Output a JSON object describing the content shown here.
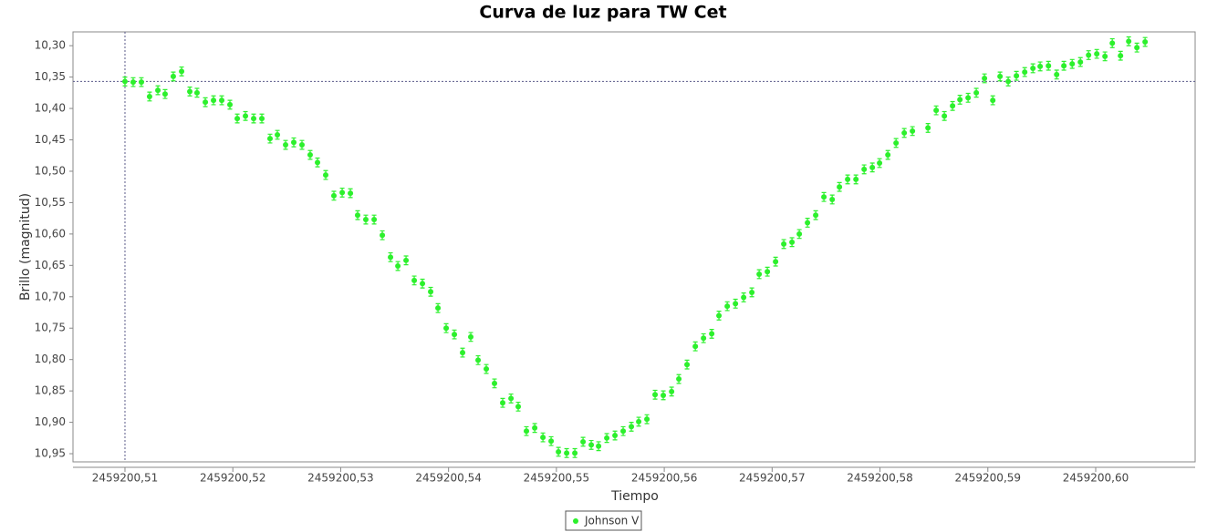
{
  "chart_data": {
    "type": "scatter",
    "title": "Curva de luz para TW Cet",
    "x_label": "Tiempo",
    "y_label": "Brillo (magnitud)",
    "xlim": [
      2459200.50518,
      2459200.60922
    ],
    "ylim": [
      10.278,
      10.963
    ],
    "y_inverted": true,
    "grid": false,
    "crosshair": {
      "x": 2459200.51,
      "y": 10.357
    },
    "legend": "bottom",
    "xticks": [
      {
        "value": 2459200.51,
        "label": "2459200,51"
      },
      {
        "value": 2459200.52,
        "label": "2459200,52"
      },
      {
        "value": 2459200.53,
        "label": "2459200,53"
      },
      {
        "value": 2459200.54,
        "label": "2459200,54"
      },
      {
        "value": 2459200.55,
        "label": "2459200,55"
      },
      {
        "value": 2459200.56,
        "label": "2459200,56"
      },
      {
        "value": 2459200.57,
        "label": "2459200,57"
      },
      {
        "value": 2459200.58,
        "label": "2459200,58"
      },
      {
        "value": 2459200.59,
        "label": "2459200,59"
      },
      {
        "value": 2459200.6,
        "label": "2459200,60"
      }
    ],
    "yticks": [
      {
        "value": 10.3,
        "label": "10,30"
      },
      {
        "value": 10.35,
        "label": "10,35"
      },
      {
        "value": 10.4,
        "label": "10,40"
      },
      {
        "value": 10.45,
        "label": "10,45"
      },
      {
        "value": 10.5,
        "label": "10,50"
      },
      {
        "value": 10.55,
        "label": "10,55"
      },
      {
        "value": 10.6,
        "label": "10,60"
      },
      {
        "value": 10.65,
        "label": "10,65"
      },
      {
        "value": 10.7,
        "label": "10,70"
      },
      {
        "value": 10.75,
        "label": "10,75"
      },
      {
        "value": 10.8,
        "label": "10,80"
      },
      {
        "value": 10.85,
        "label": "10,85"
      },
      {
        "value": 10.9,
        "label": "10,90"
      },
      {
        "value": 10.95,
        "label": "10,95"
      }
    ],
    "series": [
      {
        "name": "Johnson V",
        "color": "#2cf02c",
        "error": 0.007,
        "x": [
          2459200.51,
          2459200.51076,
          2459200.51152,
          2459200.51228,
          2459200.51305,
          2459200.51372,
          2459200.51448,
          2459200.51525,
          2459200.51601,
          2459200.51668,
          2459200.51745,
          2459200.51821,
          2459200.51897,
          2459200.51973,
          2459200.52041,
          2459200.52117,
          2459200.52193,
          2459200.52269,
          2459200.52345,
          2459200.52413,
          2459200.52489,
          2459200.52565,
          2459200.52641,
          2459200.52717,
          2459200.52785,
          2459200.52861,
          2459200.52937,
          2459200.53014,
          2459200.5309,
          2459200.53157,
          2459200.53233,
          2459200.5331,
          2459200.53386,
          2459200.53462,
          2459200.5353,
          2459200.53606,
          2459200.53682,
          2459200.53758,
          2459200.53834,
          2459200.53902,
          2459200.53978,
          2459200.54054,
          2459200.5413,
          2459200.54206,
          2459200.54274,
          2459200.5435,
          2459200.54426,
          2459200.54502,
          2459200.54579,
          2459200.54646,
          2459200.54722,
          2459200.54799,
          2459200.54875,
          2459200.54951,
          2459200.55019,
          2459200.55095,
          2459200.55171,
          2459200.55247,
          2459200.55323,
          2459200.55391,
          2459200.55467,
          2459200.55543,
          2459200.55619,
          2459200.55695,
          2459200.55763,
          2459200.55839,
          2459200.55915,
          2459200.55991,
          2459200.56068,
          2459200.56135,
          2459200.56211,
          2459200.56288,
          2459200.56364,
          2459200.5644,
          2459200.56507,
          2459200.56584,
          2459200.5666,
          2459200.56736,
          2459200.56812,
          2459200.5688,
          2459200.56956,
          2459200.57032,
          2459200.57108,
          2459200.57184,
          2459200.57252,
          2459200.57328,
          2459200.57404,
          2459200.5748,
          2459200.57557,
          2459200.57624,
          2459200.577,
          2459200.57777,
          2459200.57853,
          2459200.57929,
          2459200.57996,
          2459200.58073,
          2459200.58149,
          2459200.58225,
          2459200.58301,
          2459200.58445,
          2459200.58521,
          2459200.58597,
          2459200.58673,
          2459200.58741,
          2459200.58817,
          2459200.58893,
          2459200.58969,
          2459200.59046,
          2459200.59113,
          2459200.59189,
          2459200.59265,
          2459200.59342,
          2459200.59418,
          2459200.59485,
          2459200.59562,
          2459200.59638,
          2459200.59705,
          2459200.59782,
          2459200.59858,
          2459200.59934,
          2459200.6001,
          2459200.60086,
          2459200.60154,
          2459200.6023,
          2459200.60306,
          2459200.60382,
          2459200.60458
        ],
        "values": [
          10.357,
          10.358,
          10.358,
          10.381,
          10.371,
          10.377,
          10.349,
          10.341,
          10.373,
          10.375,
          10.39,
          10.387,
          10.387,
          10.394,
          10.416,
          10.412,
          10.416,
          10.416,
          10.448,
          10.442,
          10.458,
          10.454,
          10.458,
          10.474,
          10.486,
          10.506,
          10.539,
          10.534,
          10.535,
          10.57,
          10.577,
          10.577,
          10.602,
          10.637,
          10.651,
          10.642,
          10.674,
          10.679,
          10.692,
          10.718,
          10.75,
          10.76,
          10.789,
          10.764,
          10.801,
          10.815,
          10.838,
          10.869,
          10.862,
          10.875,
          10.914,
          10.909,
          10.924,
          10.93,
          10.947,
          10.949,
          10.949,
          10.931,
          10.936,
          10.938,
          10.925,
          10.921,
          10.914,
          10.907,
          10.899,
          10.895,
          10.856,
          10.857,
          10.851,
          10.831,
          10.808,
          10.779,
          10.766,
          10.759,
          10.73,
          10.715,
          10.711,
          10.701,
          10.693,
          10.664,
          10.66,
          10.644,
          10.616,
          10.613,
          10.6,
          10.582,
          10.57,
          10.541,
          10.545,
          10.525,
          10.513,
          10.513,
          10.497,
          10.494,
          10.487,
          10.474,
          10.455,
          10.439,
          10.436,
          10.431,
          10.403,
          10.412,
          10.396,
          10.386,
          10.383,
          10.375,
          10.352,
          10.387,
          10.349,
          10.357,
          10.348,
          10.342,
          10.336,
          10.333,
          10.332,
          10.346,
          10.332,
          10.329,
          10.326,
          10.315,
          10.313,
          10.317,
          10.296,
          10.316,
          10.293,
          10.303,
          10.294
        ]
      }
    ]
  }
}
